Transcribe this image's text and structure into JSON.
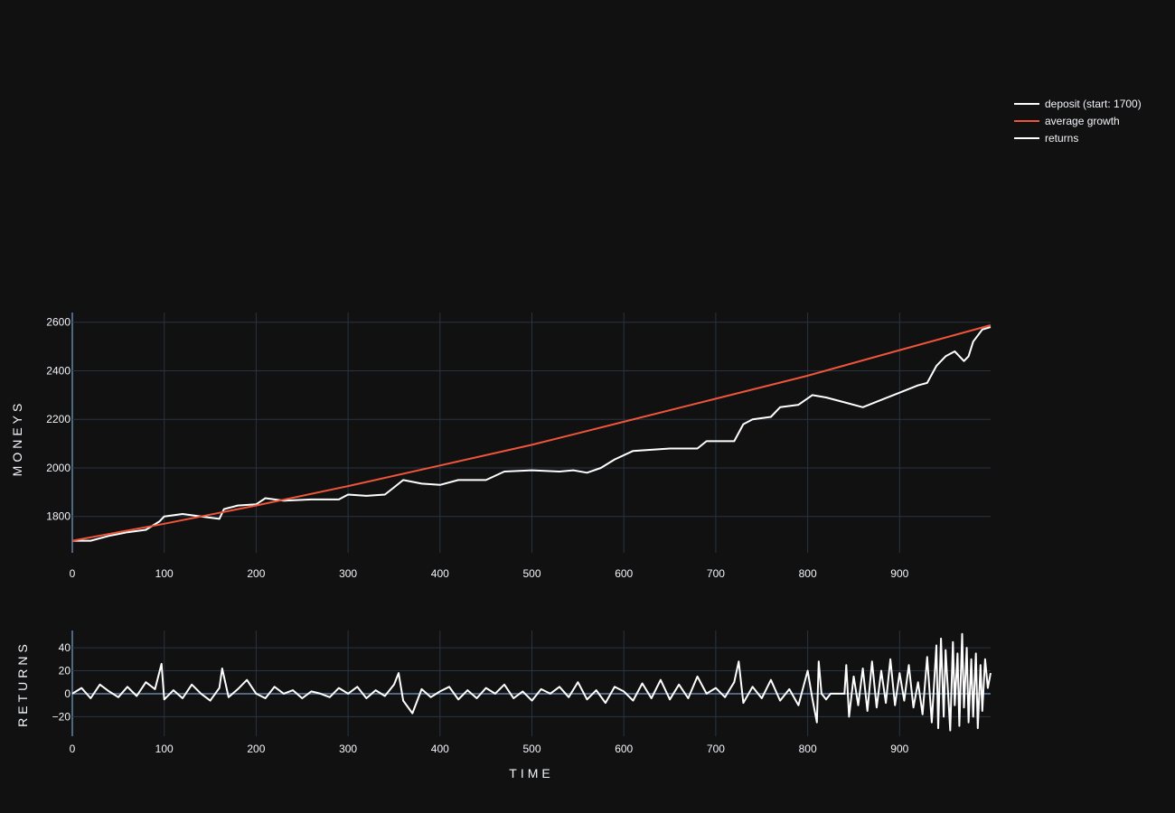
{
  "chart_data": [
    {
      "type": "line",
      "ylabel": "MONEYS",
      "xlabel": "",
      "xlim": [
        0,
        999
      ],
      "ylim": [
        1650,
        2640
      ],
      "xticks": [
        0,
        100,
        200,
        300,
        400,
        500,
        600,
        700,
        800,
        900
      ],
      "yticks": [
        1800,
        2000,
        2200,
        2400,
        2600
      ],
      "series": [
        {
          "name": "deposit (start: 1700)",
          "color": "#ffffff",
          "x": [
            0,
            20,
            40,
            60,
            80,
            95,
            100,
            120,
            140,
            160,
            165,
            180,
            200,
            210,
            230,
            260,
            290,
            300,
            320,
            340,
            350,
            360,
            380,
            400,
            420,
            450,
            470,
            500,
            530,
            545,
            560,
            575,
            590,
            610,
            650,
            680,
            690,
            700,
            720,
            730,
            740,
            760,
            770,
            790,
            805,
            820,
            840,
            860,
            880,
            900,
            920,
            930,
            940,
            950,
            960,
            970,
            975,
            980,
            990,
            999
          ],
          "y": [
            1700,
            1700,
            1720,
            1735,
            1745,
            1780,
            1800,
            1810,
            1800,
            1790,
            1830,
            1845,
            1850,
            1875,
            1865,
            1870,
            1870,
            1890,
            1885,
            1890,
            1920,
            1950,
            1935,
            1930,
            1950,
            1950,
            1985,
            1990,
            1985,
            1990,
            1980,
            2000,
            2035,
            2070,
            2080,
            2080,
            2110,
            2110,
            2110,
            2180,
            2200,
            2210,
            2250,
            2260,
            2300,
            2290,
            2270,
            2250,
            2280,
            2310,
            2340,
            2350,
            2420,
            2460,
            2480,
            2440,
            2460,
            2520,
            2570,
            2580
          ]
        },
        {
          "name": "average growth",
          "color": "#ef553b",
          "x": [
            0,
            100,
            200,
            300,
            400,
            500,
            600,
            700,
            800,
            900,
            999
          ],
          "y": [
            1700,
            1770,
            1845,
            1925,
            2010,
            2095,
            2190,
            2285,
            2380,
            2485,
            2588
          ]
        }
      ]
    },
    {
      "type": "line",
      "ylabel": "RETURNS",
      "xlabel": "TIME",
      "xlim": [
        0,
        999
      ],
      "ylim": [
        -37,
        55
      ],
      "xticks": [
        0,
        100,
        200,
        300,
        400,
        500,
        600,
        700,
        800,
        900
      ],
      "yticks": [
        -20,
        0,
        20,
        40
      ],
      "ytick_labels": [
        "−20",
        "0",
        "20",
        "40"
      ],
      "series": [
        {
          "name": "returns",
          "color": "#ffffff",
          "x": [
            0,
            10,
            20,
            30,
            40,
            50,
            60,
            70,
            80,
            90,
            97,
            100,
            110,
            120,
            130,
            140,
            150,
            160,
            163,
            170,
            180,
            190,
            200,
            210,
            220,
            230,
            240,
            250,
            260,
            270,
            280,
            290,
            300,
            310,
            320,
            330,
            340,
            350,
            355,
            360,
            370,
            380,
            390,
            400,
            410,
            420,
            430,
            440,
            450,
            460,
            470,
            480,
            490,
            500,
            510,
            520,
            530,
            540,
            550,
            560,
            570,
            580,
            590,
            600,
            610,
            620,
            630,
            640,
            650,
            660,
            670,
            680,
            690,
            700,
            710,
            720,
            725,
            730,
            740,
            750,
            760,
            770,
            780,
            790,
            800,
            805,
            810,
            812,
            815,
            820,
            825,
            830,
            840,
            842,
            845,
            850,
            855,
            860,
            865,
            870,
            875,
            880,
            885,
            890,
            895,
            900,
            905,
            910,
            915,
            920,
            925,
            930,
            935,
            940,
            942,
            945,
            948,
            950,
            955,
            958,
            960,
            963,
            965,
            968,
            970,
            973,
            975,
            978,
            980,
            983,
            985,
            988,
            990,
            993,
            996,
            999
          ],
          "y": [
            0,
            5,
            -4,
            8,
            2,
            -3,
            6,
            -2,
            10,
            4,
            26,
            -5,
            3,
            -4,
            8,
            0,
            -6,
            5,
            22,
            -3,
            4,
            12,
            0,
            -4,
            6,
            0,
            3,
            -4,
            2,
            0,
            -3,
            5,
            0,
            6,
            -4,
            3,
            -2,
            8,
            18,
            -6,
            -17,
            4,
            -3,
            2,
            6,
            -5,
            3,
            -4,
            5,
            0,
            8,
            -4,
            2,
            -6,
            4,
            0,
            6,
            -3,
            10,
            -5,
            3,
            -8,
            6,
            2,
            -6,
            9,
            -4,
            12,
            -5,
            8,
            -4,
            15,
            0,
            5,
            -3,
            10,
            28,
            -8,
            6,
            -4,
            12,
            -6,
            4,
            -10,
            20,
            -4,
            -25,
            28,
            0,
            -5,
            0,
            0,
            0,
            25,
            -20,
            15,
            -10,
            22,
            -15,
            28,
            -12,
            20,
            -8,
            30,
            -10,
            18,
            -6,
            25,
            -12,
            10,
            -18,
            32,
            -25,
            42,
            -30,
            48,
            -20,
            38,
            -32,
            45,
            -10,
            35,
            -28,
            52,
            -12,
            40,
            -25,
            30,
            -20,
            35,
            -30,
            25,
            -15,
            30,
            5,
            18
          ]
        }
      ]
    }
  ]
}
